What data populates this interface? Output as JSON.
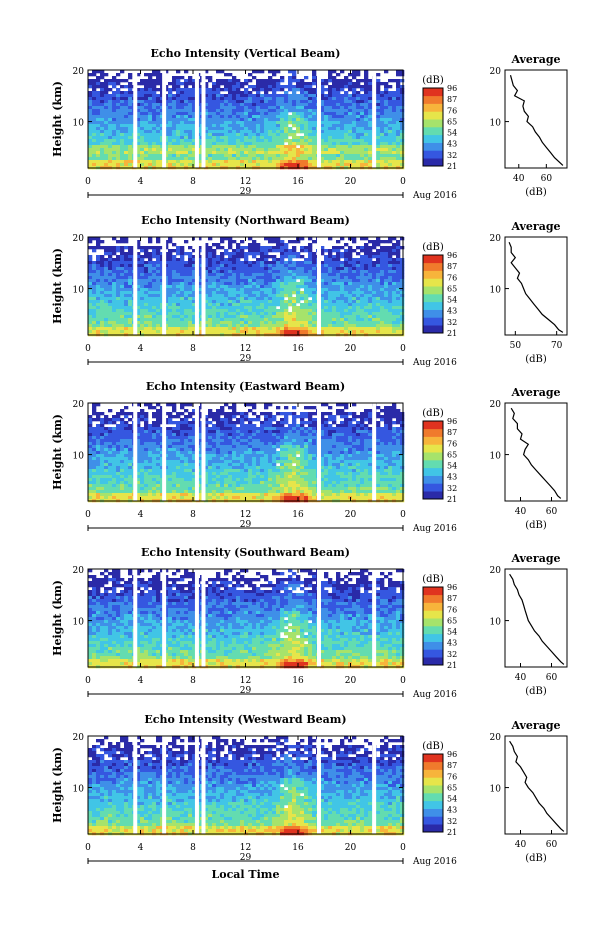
{
  "figure": {
    "xlabel": "Local Time",
    "date_label": "Aug 2016",
    "colorbar_unit": "(dB)",
    "colorbar_ticks": [
      "96",
      "87",
      "76",
      "65",
      "54",
      "43",
      "32",
      "21"
    ],
    "avg_title": "Average",
    "avg_xlabel": "(dB)",
    "ylabel": "Height (km)",
    "colormap": [
      "#2a2aa8",
      "#3557e0",
      "#3f8fe8",
      "#41c5e6",
      "#63dcb0",
      "#a6e36b",
      "#e6e54a",
      "#f7b43b",
      "#f07a2c",
      "#e0331f"
    ]
  },
  "chart_data": [
    {
      "type": "heatmap",
      "title": "Echo Intensity (Vertical Beam)",
      "x_ticks": [
        "0",
        "4",
        "8",
        "12",
        "16",
        "20",
        "0"
      ],
      "y_ticks": [
        "20",
        "10"
      ],
      "xlim": [
        0,
        24
      ],
      "ylim": [
        1,
        20
      ],
      "date_tick": "29",
      "zlim": [
        21,
        96
      ],
      "gaps_hours": [
        3.6,
        5.8,
        8.3,
        8.8,
        17.6,
        21.8
      ],
      "average_profile": {
        "x_ticks": [
          "40",
          "60"
        ],
        "xlim": [
          30,
          75
        ],
        "ylim": [
          1,
          20
        ],
        "heights_km": [
          1.5,
          2,
          3,
          4,
          5,
          6,
          7,
          8,
          9,
          10,
          11,
          12,
          13,
          14,
          15,
          16,
          17,
          18,
          19
        ],
        "values_db": [
          72,
          70,
          66,
          63,
          60,
          57,
          55,
          52,
          50,
          46,
          47,
          44,
          43,
          44,
          37,
          39,
          36,
          35,
          34
        ]
      }
    },
    {
      "type": "heatmap",
      "title": "Echo Intensity (Northward Beam)",
      "x_ticks": [
        "0",
        "4",
        "8",
        "12",
        "16",
        "20",
        "0"
      ],
      "y_ticks": [
        "20",
        "10"
      ],
      "xlim": [
        0,
        24
      ],
      "ylim": [
        1,
        20
      ],
      "date_tick": "29",
      "zlim": [
        21,
        96
      ],
      "gaps_hours": [
        3.6,
        5.8,
        8.3,
        8.8,
        17.6
      ],
      "average_profile": {
        "x_ticks": [
          "50",
          "70"
        ],
        "xlim": [
          45,
          75
        ],
        "ylim": [
          1,
          20
        ],
        "heights_km": [
          1.5,
          2,
          3,
          4,
          5,
          6,
          7,
          8,
          9,
          10,
          11,
          12,
          13,
          14,
          15,
          16,
          17,
          18,
          19
        ],
        "values_db": [
          73,
          71,
          69,
          66,
          63,
          61,
          59,
          57,
          55,
          54,
          53,
          51,
          52,
          50,
          48,
          50,
          48,
          48,
          47
        ]
      }
    },
    {
      "type": "heatmap",
      "title": "Echo Intensity (Eastward Beam)",
      "x_ticks": [
        "0",
        "4",
        "8",
        "12",
        "16",
        "20",
        "0"
      ],
      "y_ticks": [
        "20",
        "10"
      ],
      "xlim": [
        0,
        24
      ],
      "ylim": [
        1,
        20
      ],
      "date_tick": "29",
      "zlim": [
        21,
        96
      ],
      "gaps_hours": [
        3.6,
        5.8,
        8.3,
        8.8,
        17.6,
        21.8
      ],
      "average_profile": {
        "x_ticks": [
          "40",
          "60"
        ],
        "xlim": [
          30,
          70
        ],
        "ylim": [
          1,
          20
        ],
        "heights_km": [
          1.5,
          2,
          3,
          4,
          5,
          6,
          7,
          8,
          9,
          10,
          11,
          12,
          13,
          14,
          15,
          16,
          17,
          18,
          19
        ],
        "values_db": [
          66,
          64,
          62,
          59,
          56,
          53,
          50,
          47,
          45,
          42,
          43,
          45,
          40,
          41,
          38,
          38,
          35,
          36,
          34
        ]
      }
    },
    {
      "type": "heatmap",
      "title": "Echo Intensity (Southward Beam)",
      "x_ticks": [
        "0",
        "4",
        "8",
        "12",
        "16",
        "20",
        "0"
      ],
      "y_ticks": [
        "20",
        "10"
      ],
      "xlim": [
        0,
        24
      ],
      "ylim": [
        1,
        20
      ],
      "date_tick": "29",
      "zlim": [
        21,
        96
      ],
      "gaps_hours": [
        3.6,
        5.8,
        8.3,
        8.8,
        17.6,
        21.8
      ],
      "average_profile": {
        "x_ticks": [
          "40",
          "60"
        ],
        "xlim": [
          30,
          70
        ],
        "ylim": [
          1,
          20
        ],
        "heights_km": [
          1.5,
          2,
          3,
          4,
          5,
          6,
          7,
          8,
          9,
          10,
          11,
          12,
          13,
          14,
          15,
          16,
          17,
          18,
          19
        ],
        "values_db": [
          68,
          66,
          63,
          60,
          57,
          54,
          52,
          49,
          47,
          45,
          44,
          43,
          42,
          41,
          39,
          38,
          36,
          35,
          33
        ]
      }
    },
    {
      "type": "heatmap",
      "title": "Echo Intensity (Westward Beam)",
      "x_ticks": [
        "0",
        "4",
        "8",
        "12",
        "16",
        "20",
        "0"
      ],
      "y_ticks": [
        "20",
        "10"
      ],
      "xlim": [
        0,
        24
      ],
      "ylim": [
        1,
        20
      ],
      "date_tick": "29",
      "zlim": [
        21,
        96
      ],
      "gaps_hours": [
        3.6,
        5.8,
        8.3,
        8.8,
        17.6,
        21.8
      ],
      "average_profile": {
        "x_ticks": [
          "40",
          "60"
        ],
        "xlim": [
          30,
          70
        ],
        "ylim": [
          1,
          20
        ],
        "heights_km": [
          1.5,
          2,
          3,
          4,
          5,
          6,
          7,
          8,
          9,
          10,
          11,
          12,
          13,
          14,
          15,
          16,
          17,
          18,
          19
        ],
        "values_db": [
          68,
          66,
          63,
          60,
          57,
          55,
          52,
          50,
          48,
          45,
          43,
          44,
          42,
          40,
          37,
          38,
          36,
          35,
          33
        ]
      }
    }
  ]
}
